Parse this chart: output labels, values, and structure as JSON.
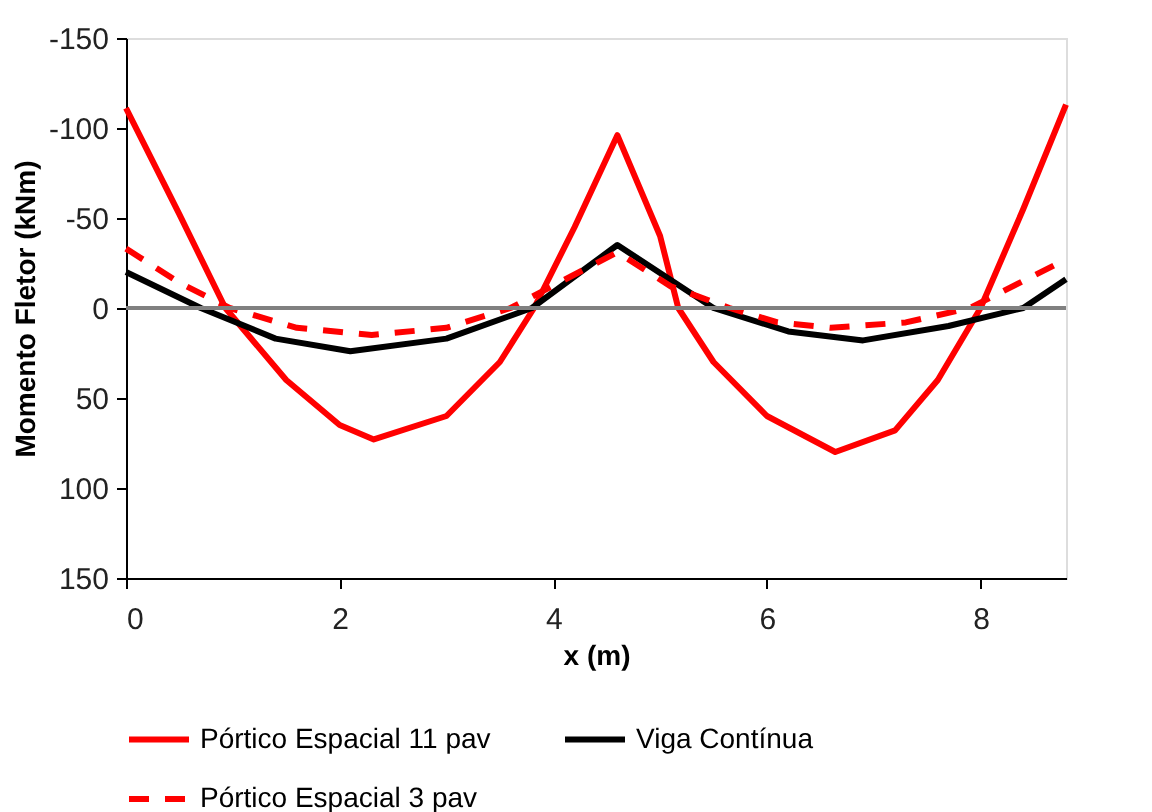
{
  "chart_data": {
    "type": "line",
    "xlabel": "x (m)",
    "ylabel": "Momento Fletor (kNm)",
    "xlim": [
      0,
      8.8
    ],
    "xticks": [
      0,
      2,
      4,
      6,
      8
    ],
    "ylim": [
      150,
      -150
    ],
    "yticks": [
      -150,
      -100,
      -50,
      0,
      50,
      100,
      150
    ],
    "grid": false,
    "legend": "bottom",
    "marker": "none",
    "ref_lines": [
      {
        "axis": "y",
        "value": 0,
        "color": "#808080"
      }
    ],
    "series": [
      {
        "name": "Pórtico Espacial 11 pav",
        "color": "#ff0000",
        "line_style": "solid",
        "x": [
          0,
          0.5,
          0.93,
          1.5,
          2.0,
          2.32,
          3.0,
          3.5,
          3.82,
          4.2,
          4.6,
          5.0,
          5.17,
          5.5,
          6.0,
          6.64,
          7.2,
          7.6,
          8.0,
          8.4,
          8.8
        ],
        "values": [
          -111,
          -52,
          0,
          40,
          65,
          73,
          60,
          30,
          0,
          -45,
          -96,
          -40,
          0,
          30,
          60,
          80,
          68,
          40,
          0,
          -55,
          -113
        ]
      },
      {
        "name": "Viga Contínua",
        "color": "#000000",
        "line_style": "solid",
        "x": [
          0,
          0.7,
          1.4,
          2.1,
          3.0,
          3.8,
          4.6,
          5.5,
          6.2,
          6.9,
          7.7,
          8.4,
          8.8
        ],
        "values": [
          -20,
          0,
          17,
          24,
          17,
          0,
          -35,
          0,
          13,
          18,
          10,
          0,
          -16
        ]
      },
      {
        "name": "Pórtico Espacial 3 pav",
        "color": "#ff0000",
        "line_style": "dashed",
        "x": [
          0,
          0.5,
          0.97,
          1.6,
          2.3,
          3.0,
          3.6,
          4.6,
          5.1,
          5.65,
          6.1,
          6.6,
          7.3,
          7.9,
          8.8
        ],
        "values": [
          -33,
          -14,
          0,
          11,
          15,
          11,
          0,
          -31,
          -12,
          0,
          8,
          11,
          8,
          0,
          -27
        ]
      }
    ]
  }
}
